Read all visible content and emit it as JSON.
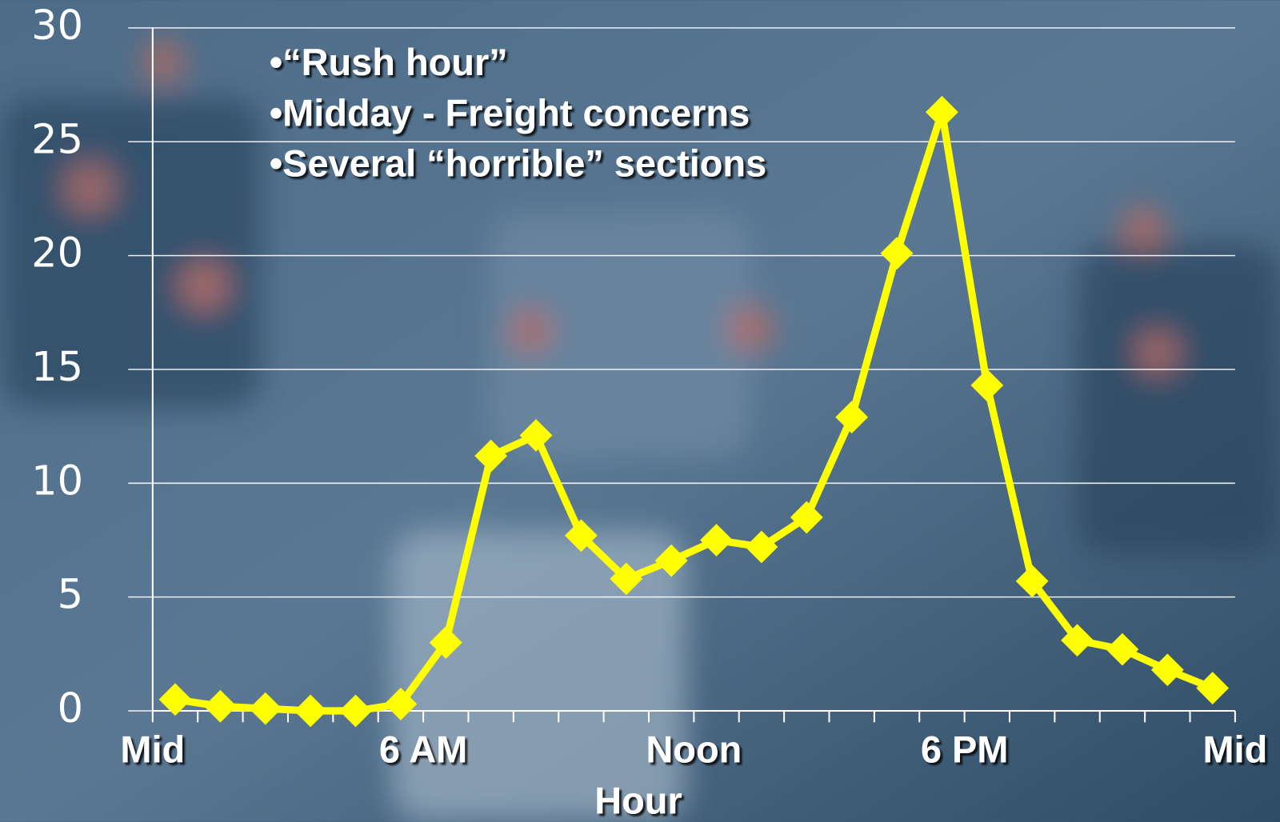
{
  "chart_data": {
    "type": "line",
    "annotations": [
      "•“Rush hour”",
      "•Midday - Freight concerns",
      "•Several “horrible” sections"
    ],
    "x_label": "Hour",
    "x": [
      0.5,
      1.5,
      2.5,
      3.5,
      4.5,
      5.5,
      6.5,
      7.5,
      8.5,
      9.5,
      10.5,
      11.5,
      12.5,
      13.5,
      14.5,
      15.5,
      16.5,
      17.5,
      18.5,
      19.5,
      20.5,
      21.5,
      22.5,
      23.5
    ],
    "series": [
      {
        "color": "#ffff00",
        "values": [
          0.5,
          0.2,
          0.1,
          0,
          0,
          0.3,
          3.0,
          11.2,
          12.1,
          7.7,
          5.8,
          6.6,
          7.5,
          7.2,
          8.5,
          12.9,
          20.1,
          26.3,
          14.3,
          5.7,
          3.1,
          2.7,
          1.8,
          1.0
        ]
      }
    ],
    "xlim": [
      0,
      24
    ],
    "xticks": [
      0,
      1,
      2,
      3,
      4,
      5,
      6,
      7,
      8,
      9,
      10,
      11,
      12,
      13,
      14,
      15,
      16,
      17,
      18,
      19,
      20,
      21,
      22,
      23,
      24
    ],
    "xtick_labels": [
      {
        "value": 0,
        "label": "Mid"
      },
      {
        "value": 6,
        "label": "6 AM"
      },
      {
        "value": 12,
        "label": "Noon"
      },
      {
        "value": 18,
        "label": "6 PM"
      },
      {
        "value": 24,
        "label": "Mid"
      }
    ],
    "ylim": [
      0,
      30
    ],
    "yticks": [
      0,
      5,
      10,
      15,
      20,
      25,
      30
    ],
    "grid": true
  }
}
